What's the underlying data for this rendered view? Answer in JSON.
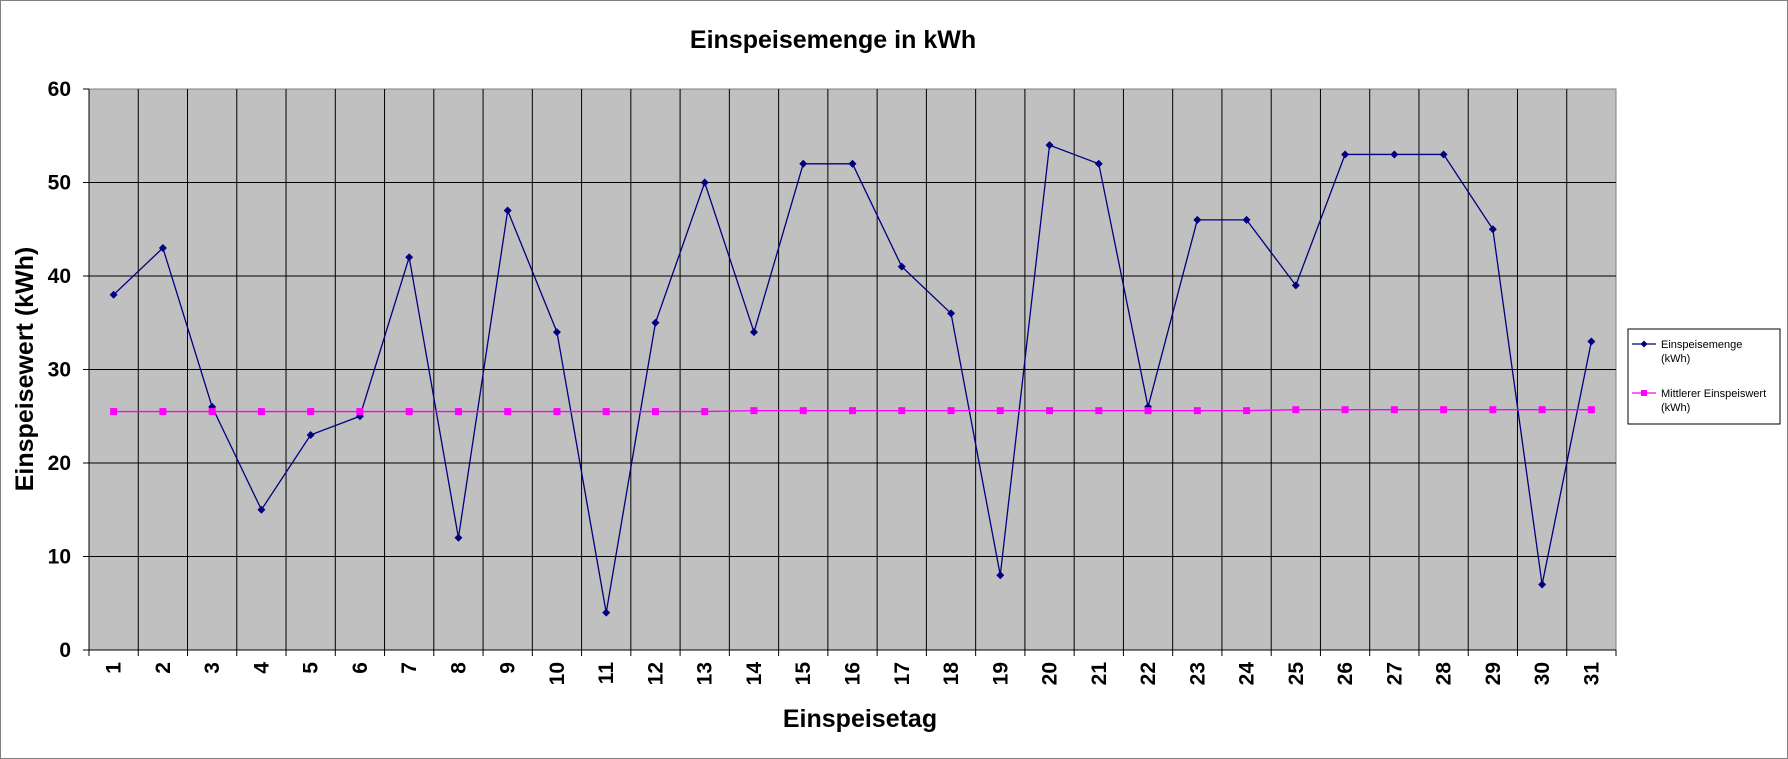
{
  "chart_data": {
    "type": "line",
    "title": "Einspeisemenge in kWh",
    "xlabel": "Einspeisetag",
    "ylabel": "Einspeisewert  (kWh)",
    "categories": [
      "1",
      "2",
      "3",
      "4",
      "5",
      "6",
      "7",
      "8",
      "9",
      "10",
      "11",
      "12",
      "13",
      "14",
      "15",
      "16",
      "17",
      "18",
      "19",
      "20",
      "21",
      "22",
      "23",
      "24",
      "25",
      "26",
      "27",
      "28",
      "29",
      "30",
      "31"
    ],
    "ylim": [
      0,
      60
    ],
    "yticks": [
      "0",
      "10",
      "20",
      "30",
      "40",
      "50",
      "60"
    ],
    "grid": true,
    "legend_position": "right",
    "series": [
      {
        "name": "Einspeisemenge (kWh)",
        "legend_lines": [
          "Einspeisemenge",
          "(kWh)"
        ],
        "color": "#000080",
        "marker": "diamond",
        "values": [
          38,
          43,
          26,
          15,
          23,
          25,
          42,
          12,
          47,
          34,
          4,
          35,
          50,
          34,
          52,
          52,
          41,
          36,
          8,
          54,
          52,
          26,
          46,
          46,
          39,
          53,
          53,
          53,
          45,
          7,
          33
        ]
      },
      {
        "name": "Mittlerer Einspeiswert (kWh)",
        "legend_lines": [
          "Mittlerer Einspeiswert",
          "(kWh)"
        ],
        "color": "#ff00ff",
        "marker": "square",
        "values": [
          25.5,
          25.5,
          25.5,
          25.5,
          25.5,
          25.5,
          25.5,
          25.5,
          25.5,
          25.5,
          25.5,
          25.5,
          25.5,
          25.6,
          25.6,
          25.6,
          25.6,
          25.6,
          25.6,
          25.6,
          25.6,
          25.6,
          25.6,
          25.6,
          25.7,
          25.7,
          25.7,
          25.7,
          25.7,
          25.7,
          25.7
        ]
      }
    ],
    "plot_background": "#c0c0c0"
  }
}
